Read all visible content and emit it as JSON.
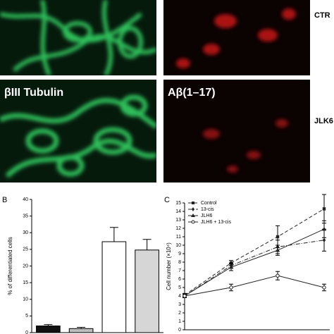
{
  "images": {
    "row_labels": [
      "CTR",
      "JLK6"
    ],
    "stain_labels": [
      "βIII Tubulin",
      "Aβ(1–17)"
    ]
  },
  "chart_data": [
    {
      "type": "bar",
      "panel": "B",
      "y_label": "% of differentiated cells",
      "categories": [
        null,
        null,
        null,
        null
      ],
      "values": [
        2,
        1.2,
        27.3,
        24.8
      ],
      "errors": [
        0.4,
        0.4,
        4.3,
        3.2
      ],
      "colors": [
        "#111111",
        "#bdbdbd",
        "#ffffff",
        "#d6d6d6"
      ],
      "ylim": [
        0,
        40
      ],
      "yticks": [
        0,
        5,
        10,
        15,
        20,
        25,
        30,
        35,
        40
      ]
    },
    {
      "type": "line",
      "panel": "C",
      "y_label": "Cell number (×10⁴)",
      "categories": [
        null,
        null,
        null,
        null
      ],
      "series": [
        {
          "name": "Control",
          "color": "#222222",
          "marker": "square",
          "dash": "5,3",
          "values": [
            4.1,
            7.9,
            11.0,
            14.3
          ],
          "errors": [
            0.2,
            0.3,
            1.3,
            1.7
          ]
        },
        {
          "name": "13-cis",
          "color": "#222222",
          "marker": "diamond",
          "dash": "6,2,1,2",
          "values": [
            4.0,
            7.6,
            9.8,
            10.6
          ],
          "errors": [
            0.2,
            0.3,
            0.8,
            1.3
          ]
        },
        {
          "name": "JLH6",
          "color": "#222222",
          "marker": "triangle",
          "dash": "none",
          "values": [
            4.0,
            7.4,
            9.4,
            11.9
          ],
          "errors": [
            0.2,
            0.4,
            0.6,
            1.0
          ]
        },
        {
          "name": "JLH6 + 13-cis",
          "color": "#222222",
          "marker": "circle",
          "dash": "none",
          "values": [
            4.0,
            5.0,
            6.4,
            5.0
          ],
          "errors": [
            0.2,
            0.4,
            0.5,
            0.4
          ]
        }
      ],
      "ylim": [
        0,
        15
      ],
      "yticks": [
        0,
        1,
        2,
        3,
        4,
        5,
        6,
        7,
        8,
        9,
        10,
        11,
        12,
        13,
        14,
        15
      ]
    }
  ]
}
